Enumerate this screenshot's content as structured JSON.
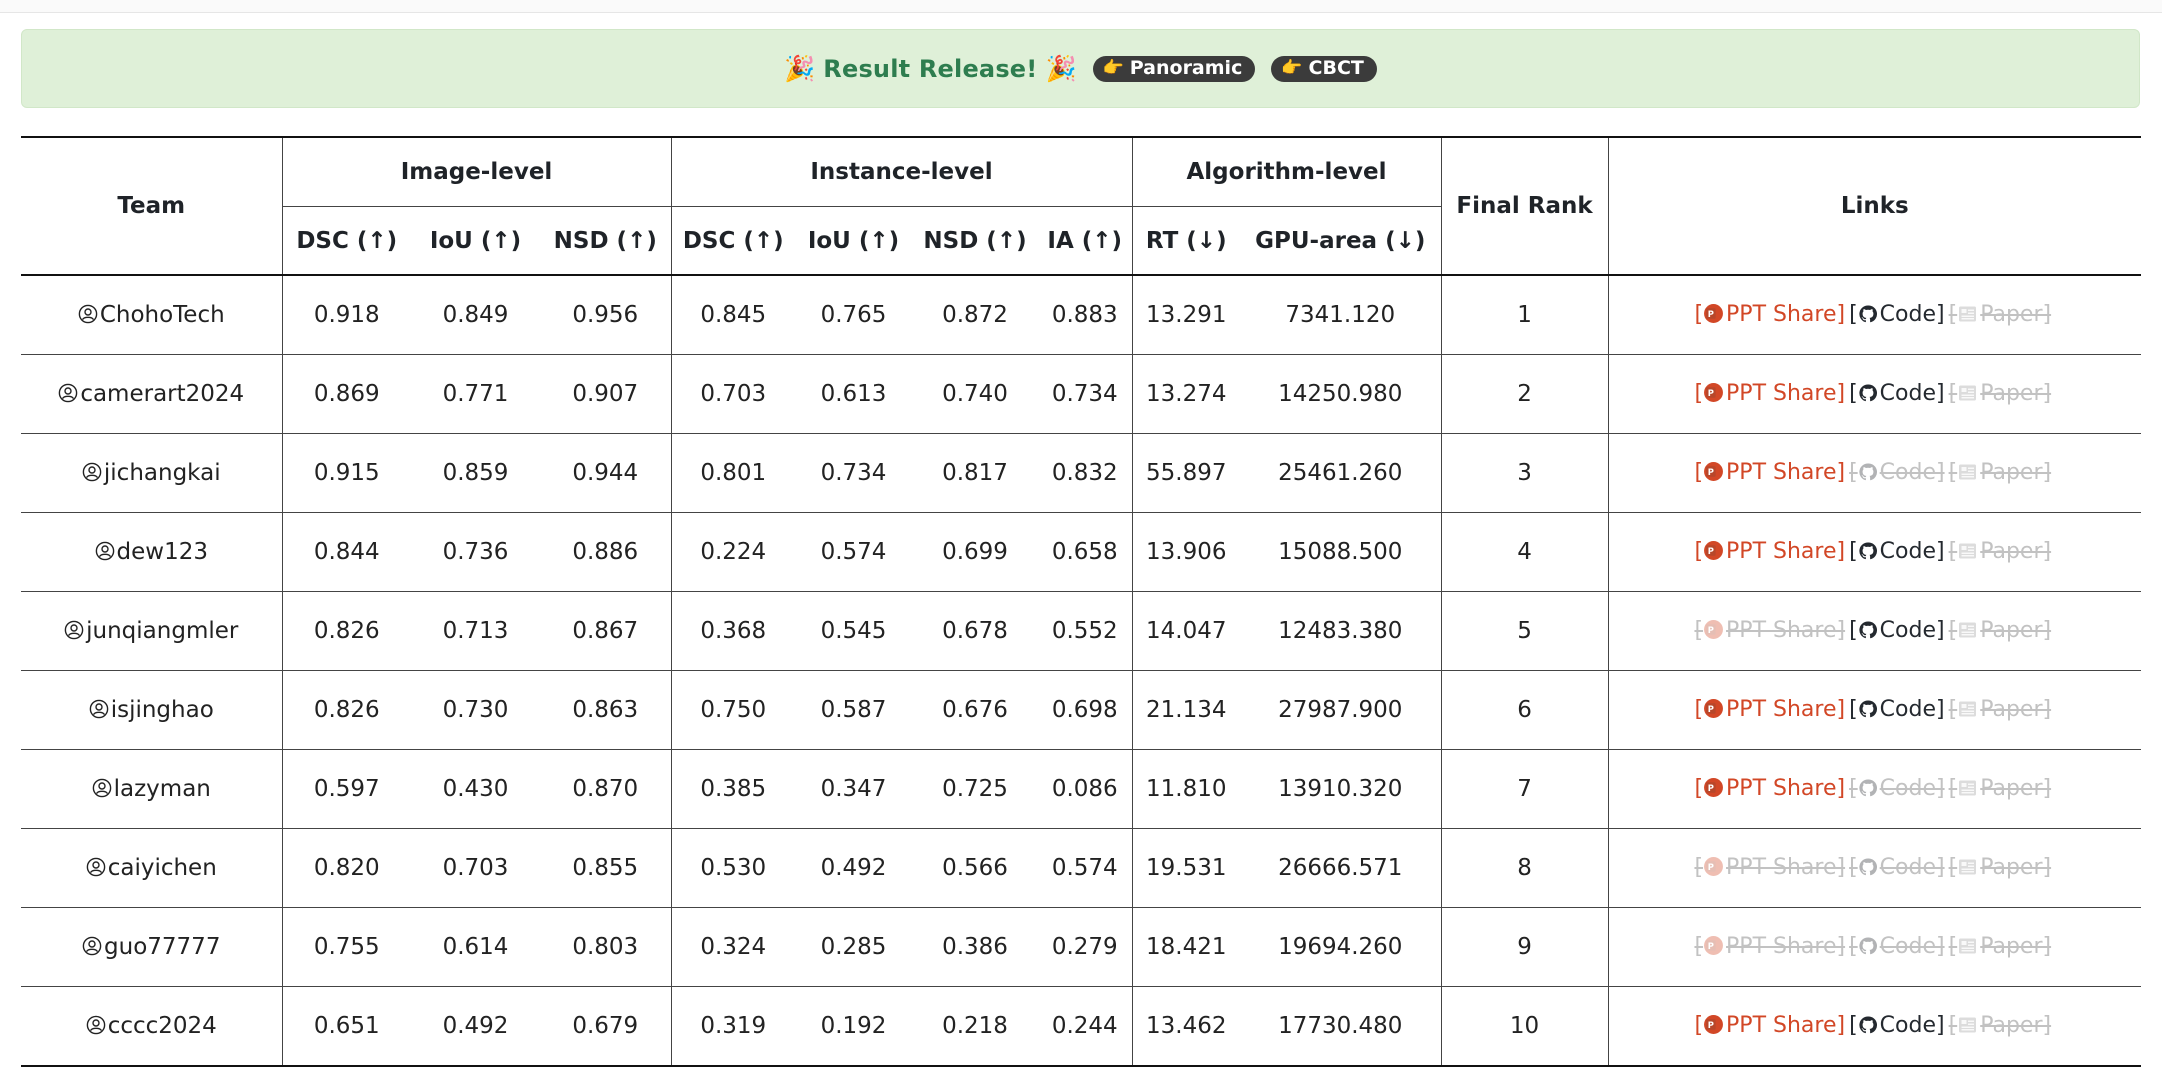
{
  "banner": {
    "title": "Result Release!",
    "pills": [
      "Panoramic",
      "CBCT"
    ]
  },
  "table": {
    "groups": {
      "team": "Team",
      "image_level": "Image-level",
      "instance_level": "Instance-level",
      "algorithm_level": "Algorithm-level",
      "final_rank": "Final Rank",
      "links": "Links"
    },
    "columns": [
      "DSC (↑)",
      "IoU (↑)",
      "NSD (↑)",
      "DSC (↑)",
      "IoU (↑)",
      "NSD (↑)",
      "IA (↑)",
      "RT (↓)",
      "GPU-area (↓)"
    ],
    "link_labels": {
      "ppt": "PPT Share",
      "code": "Code",
      "paper": "Paper"
    },
    "rows": [
      {
        "team": "ChohoTech",
        "values": [
          "0.918",
          "0.849",
          "0.956",
          "0.845",
          "0.765",
          "0.872",
          "0.883",
          "13.291",
          "7341.120"
        ],
        "rank": "1",
        "ppt": true,
        "code": true,
        "paper": false
      },
      {
        "team": "camerart2024",
        "values": [
          "0.869",
          "0.771",
          "0.907",
          "0.703",
          "0.613",
          "0.740",
          "0.734",
          "13.274",
          "14250.980"
        ],
        "rank": "2",
        "ppt": true,
        "code": true,
        "paper": false
      },
      {
        "team": "jichangkai",
        "values": [
          "0.915",
          "0.859",
          "0.944",
          "0.801",
          "0.734",
          "0.817",
          "0.832",
          "55.897",
          "25461.260"
        ],
        "rank": "3",
        "ppt": true,
        "code": false,
        "paper": false
      },
      {
        "team": "dew123",
        "values": [
          "0.844",
          "0.736",
          "0.886",
          "0.224",
          "0.574",
          "0.699",
          "0.658",
          "13.906",
          "15088.500"
        ],
        "rank": "4",
        "ppt": true,
        "code": true,
        "paper": false
      },
      {
        "team": "junqiangmler",
        "values": [
          "0.826",
          "0.713",
          "0.867",
          "0.368",
          "0.545",
          "0.678",
          "0.552",
          "14.047",
          "12483.380"
        ],
        "rank": "5",
        "ppt": false,
        "code": true,
        "paper": false
      },
      {
        "team": "isjinghao",
        "values": [
          "0.826",
          "0.730",
          "0.863",
          "0.750",
          "0.587",
          "0.676",
          "0.698",
          "21.134",
          "27987.900"
        ],
        "rank": "6",
        "ppt": true,
        "code": true,
        "paper": false
      },
      {
        "team": "lazyman",
        "values": [
          "0.597",
          "0.430",
          "0.870",
          "0.385",
          "0.347",
          "0.725",
          "0.086",
          "11.810",
          "13910.320"
        ],
        "rank": "7",
        "ppt": true,
        "code": false,
        "paper": false
      },
      {
        "team": "caiyichen",
        "values": [
          "0.820",
          "0.703",
          "0.855",
          "0.530",
          "0.492",
          "0.566",
          "0.574",
          "19.531",
          "26666.571"
        ],
        "rank": "8",
        "ppt": false,
        "code": false,
        "paper": false
      },
      {
        "team": "guo77777",
        "values": [
          "0.755",
          "0.614",
          "0.803",
          "0.324",
          "0.285",
          "0.386",
          "0.279",
          "18.421",
          "19694.260"
        ],
        "rank": "9",
        "ppt": false,
        "code": false,
        "paper": false
      },
      {
        "team": "cccc2024",
        "values": [
          "0.651",
          "0.492",
          "0.679",
          "0.319",
          "0.192",
          "0.218",
          "0.244",
          "13.462",
          "17730.480"
        ],
        "rank": "10",
        "ppt": true,
        "code": true,
        "paper": false
      }
    ]
  },
  "colors": {
    "banner_bg": "#dff0d8",
    "banner_text": "#2e7d4f",
    "pill_bg": "#3b3b3b",
    "ppt_link": "#d24726",
    "disabled_link": "#c2c2c2"
  }
}
